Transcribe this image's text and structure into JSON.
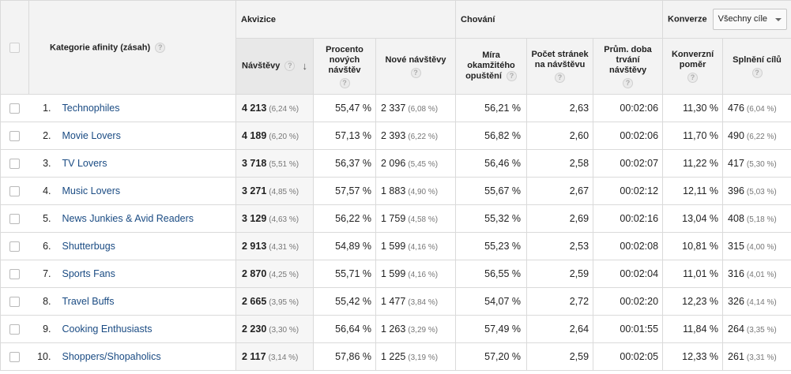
{
  "header": {
    "category_label": "Kategorie afinity (zásah)",
    "group_acquisition": "Akvizice",
    "group_behavior": "Chování",
    "group_conversions": "Konverze",
    "conversions_select": "Všechny cíle",
    "col_visits": "Návštěvy",
    "col_new_pct": "Procento nových návštěv",
    "col_new_visits": "Nové návštěvy",
    "col_bounce": "Míra okamžitého opuštění",
    "col_pages": "Počet stránek na návštěvu",
    "col_duration": "Prům. doba trvání návštěvy",
    "col_conv_rate": "Konverzní poměr",
    "col_goals": "Splnění cílů",
    "help_glyph": "?",
    "sort_arrow": "↓"
  },
  "rows": [
    {
      "idx": "1.",
      "category": "Technophiles",
      "visits": "4 213",
      "visits_pct": "(6,24 %)",
      "new_pct": "55,47 %",
      "new_visits": "2 337",
      "new_visits_pct": "(6,08 %)",
      "bounce": "56,21 %",
      "pages": "2,63",
      "duration": "00:02:06",
      "conv_rate": "11,30 %",
      "goals": "476",
      "goals_pct": "(6,04 %)"
    },
    {
      "idx": "2.",
      "category": "Movie Lovers",
      "visits": "4 189",
      "visits_pct": "(6,20 %)",
      "new_pct": "57,13 %",
      "new_visits": "2 393",
      "new_visits_pct": "(6,22 %)",
      "bounce": "56,82 %",
      "pages": "2,60",
      "duration": "00:02:06",
      "conv_rate": "11,70 %",
      "goals": "490",
      "goals_pct": "(6,22 %)"
    },
    {
      "idx": "3.",
      "category": "TV Lovers",
      "visits": "3 718",
      "visits_pct": "(5,51 %)",
      "new_pct": "56,37 %",
      "new_visits": "2 096",
      "new_visits_pct": "(5,45 %)",
      "bounce": "56,46 %",
      "pages": "2,58",
      "duration": "00:02:07",
      "conv_rate": "11,22 %",
      "goals": "417",
      "goals_pct": "(5,30 %)"
    },
    {
      "idx": "4.",
      "category": "Music Lovers",
      "visits": "3 271",
      "visits_pct": "(4,85 %)",
      "new_pct": "57,57 %",
      "new_visits": "1 883",
      "new_visits_pct": "(4,90 %)",
      "bounce": "55,67 %",
      "pages": "2,67",
      "duration": "00:02:12",
      "conv_rate": "12,11 %",
      "goals": "396",
      "goals_pct": "(5,03 %)"
    },
    {
      "idx": "5.",
      "category": "News Junkies & Avid Readers",
      "visits": "3 129",
      "visits_pct": "(4,63 %)",
      "new_pct": "56,22 %",
      "new_visits": "1 759",
      "new_visits_pct": "(4,58 %)",
      "bounce": "55,32 %",
      "pages": "2,69",
      "duration": "00:02:16",
      "conv_rate": "13,04 %",
      "goals": "408",
      "goals_pct": "(5,18 %)"
    },
    {
      "idx": "6.",
      "category": "Shutterbugs",
      "visits": "2 913",
      "visits_pct": "(4,31 %)",
      "new_pct": "54,89 %",
      "new_visits": "1 599",
      "new_visits_pct": "(4,16 %)",
      "bounce": "55,23 %",
      "pages": "2,53",
      "duration": "00:02:08",
      "conv_rate": "10,81 %",
      "goals": "315",
      "goals_pct": "(4,00 %)"
    },
    {
      "idx": "7.",
      "category": "Sports Fans",
      "visits": "2 870",
      "visits_pct": "(4,25 %)",
      "new_pct": "55,71 %",
      "new_visits": "1 599",
      "new_visits_pct": "(4,16 %)",
      "bounce": "56,55 %",
      "pages": "2,59",
      "duration": "00:02:04",
      "conv_rate": "11,01 %",
      "goals": "316",
      "goals_pct": "(4,01 %)"
    },
    {
      "idx": "8.",
      "category": "Travel Buffs",
      "visits": "2 665",
      "visits_pct": "(3,95 %)",
      "new_pct": "55,42 %",
      "new_visits": "1 477",
      "new_visits_pct": "(3,84 %)",
      "bounce": "54,07 %",
      "pages": "2,72",
      "duration": "00:02:20",
      "conv_rate": "12,23 %",
      "goals": "326",
      "goals_pct": "(4,14 %)"
    },
    {
      "idx": "9.",
      "category": "Cooking Enthusiasts",
      "visits": "2 230",
      "visits_pct": "(3,30 %)",
      "new_pct": "56,64 %",
      "new_visits": "1 263",
      "new_visits_pct": "(3,29 %)",
      "bounce": "57,49 %",
      "pages": "2,64",
      "duration": "00:01:55",
      "conv_rate": "11,84 %",
      "goals": "264",
      "goals_pct": "(3,35 %)"
    },
    {
      "idx": "10.",
      "category": "Shoppers/Shopaholics",
      "visits": "2 117",
      "visits_pct": "(3,14 %)",
      "new_pct": "57,86 %",
      "new_visits": "1 225",
      "new_visits_pct": "(3,19 %)",
      "bounce": "57,20 %",
      "pages": "2,59",
      "duration": "00:02:05",
      "conv_rate": "12,33 %",
      "goals": "261",
      "goals_pct": "(3,31 %)"
    }
  ]
}
